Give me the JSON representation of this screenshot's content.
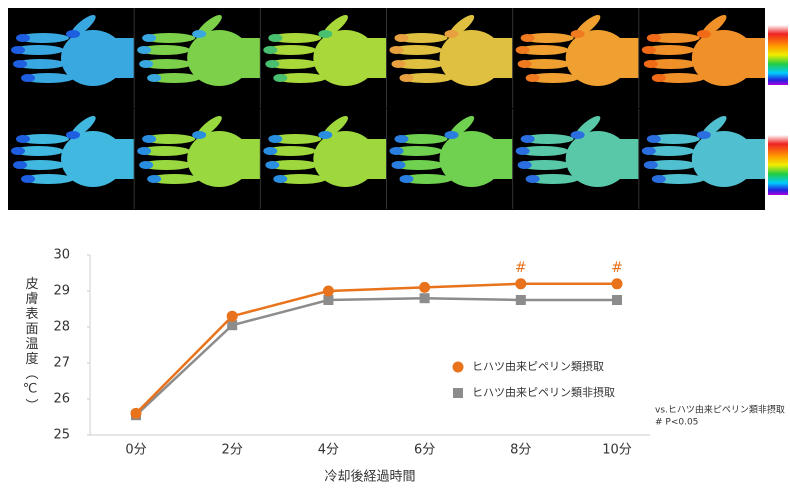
{
  "chart_data": {
    "type": "line",
    "x_label": "冷却後経過時間",
    "y_label": "皮膚表面温度（℃）",
    "categories": [
      "0分",
      "2分",
      "4分",
      "6分",
      "8分",
      "10分"
    ],
    "series": [
      {
        "name": "ヒハツ由来ピペリン類摂取",
        "color": "#e8731c",
        "marker": "circle",
        "values": [
          25.6,
          28.3,
          29.0,
          29.1,
          29.2,
          29.2
        ]
      },
      {
        "name": "ヒハツ由来ピペリン類非摂取",
        "color": "#8c8c8c",
        "marker": "square",
        "values": [
          25.55,
          28.05,
          28.75,
          28.8,
          28.75,
          28.75
        ]
      }
    ],
    "ylim": [
      25,
      30
    ],
    "yticks": [
      25,
      26,
      27,
      28,
      29,
      30
    ],
    "grid": false,
    "annotations": [
      {
        "x": "8分",
        "text": "#"
      },
      {
        "x": "10分",
        "text": "#"
      }
    ],
    "footnotes": [
      "vs.ヒハツ由来ピペリン類非摂取",
      "# P<0.05"
    ]
  }
}
